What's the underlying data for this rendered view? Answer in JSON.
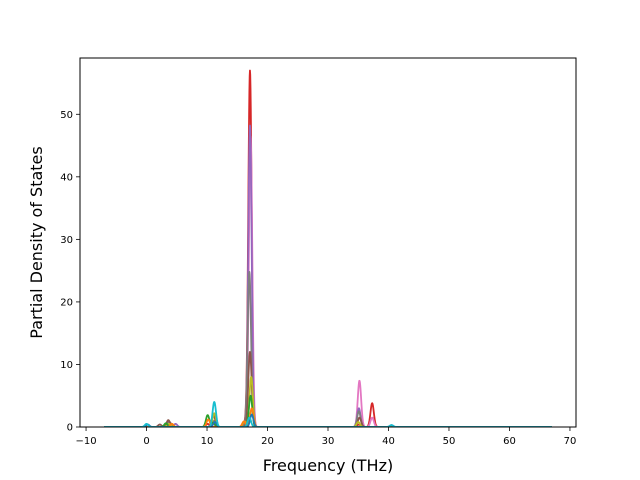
{
  "chart_data": {
    "type": "line",
    "title": "",
    "xlabel": "Frequency (THz)",
    "ylabel": "Partial Density of States",
    "xlim": [
      -11,
      71
    ],
    "ylim": [
      0,
      59
    ],
    "xticks": [
      -10,
      0,
      10,
      20,
      30,
      40,
      50,
      60,
      70
    ],
    "xtick_labels": [
      "−10",
      "0",
      "10",
      "20",
      "30",
      "40",
      "50",
      "60",
      "70"
    ],
    "yticks": [
      0,
      10,
      20,
      30,
      40,
      50
    ],
    "ytick_labels": [
      "0",
      "10",
      "20",
      "30",
      "40",
      "50"
    ],
    "grid": false,
    "legend": "none",
    "x_range": [
      -7,
      67
    ],
    "peak_width_thz": 0.28,
    "series": [
      {
        "color": "#d62728",
        "peaks": [
          [
            17.1,
            57.0
          ],
          [
            37.3,
            3.8
          ],
          [
            16.3,
            0.6
          ],
          [
            3.3,
            0.6
          ],
          [
            10.1,
            0.5
          ],
          [
            35.1,
            0.4
          ]
        ]
      },
      {
        "color": "#e377c2",
        "peaks": [
          [
            17.2,
            46.5
          ],
          [
            35.2,
            7.4
          ],
          [
            37.3,
            1.5
          ],
          [
            11.0,
            0.5
          ],
          [
            3.5,
            0.6
          ]
        ]
      },
      {
        "color": "#9467bd",
        "peaks": [
          [
            17.1,
            48.2
          ],
          [
            35.1,
            3.0
          ],
          [
            3.6,
            0.9
          ],
          [
            4.8,
            0.5
          ]
        ]
      },
      {
        "color": "#7f7f7f",
        "peaks": [
          [
            17.0,
            24.8
          ],
          [
            35.1,
            2.5
          ],
          [
            11.2,
            1.0
          ],
          [
            3.8,
            0.8
          ]
        ]
      },
      {
        "color": "#8c564b",
        "peaks": [
          [
            17.1,
            12.0
          ],
          [
            11.1,
            1.8
          ],
          [
            35.2,
            1.5
          ],
          [
            3.6,
            1.1
          ],
          [
            2.2,
            0.4
          ]
        ]
      },
      {
        "color": "#bcbd22",
        "peaks": [
          [
            17.3,
            8.0
          ],
          [
            11.2,
            2.2
          ],
          [
            35.0,
            0.8
          ],
          [
            16.2,
            0.9
          ],
          [
            3.7,
            0.5
          ]
        ]
      },
      {
        "color": "#2ca02c",
        "peaks": [
          [
            10.1,
            1.9
          ],
          [
            17.2,
            5.0
          ],
          [
            11.0,
            0.7
          ],
          [
            3.2,
            0.6
          ]
        ]
      },
      {
        "color": "#ff7f0e",
        "peaks": [
          [
            16.1,
            0.9
          ],
          [
            10.2,
            1.2
          ],
          [
            17.4,
            3.0
          ],
          [
            4.2,
            0.5
          ]
        ]
      },
      {
        "color": "#1f77b4",
        "peaks": [
          [
            17.4,
            2.0
          ],
          [
            0.2,
            0.4
          ],
          [
            11.3,
            0.8
          ],
          [
            40.5,
            0.3
          ]
        ]
      },
      {
        "color": "#17becf",
        "peaks": [
          [
            11.2,
            4.0
          ],
          [
            0.0,
            0.5
          ],
          [
            17.0,
            1.5
          ],
          [
            40.5,
            0.3
          ]
        ]
      }
    ]
  }
}
